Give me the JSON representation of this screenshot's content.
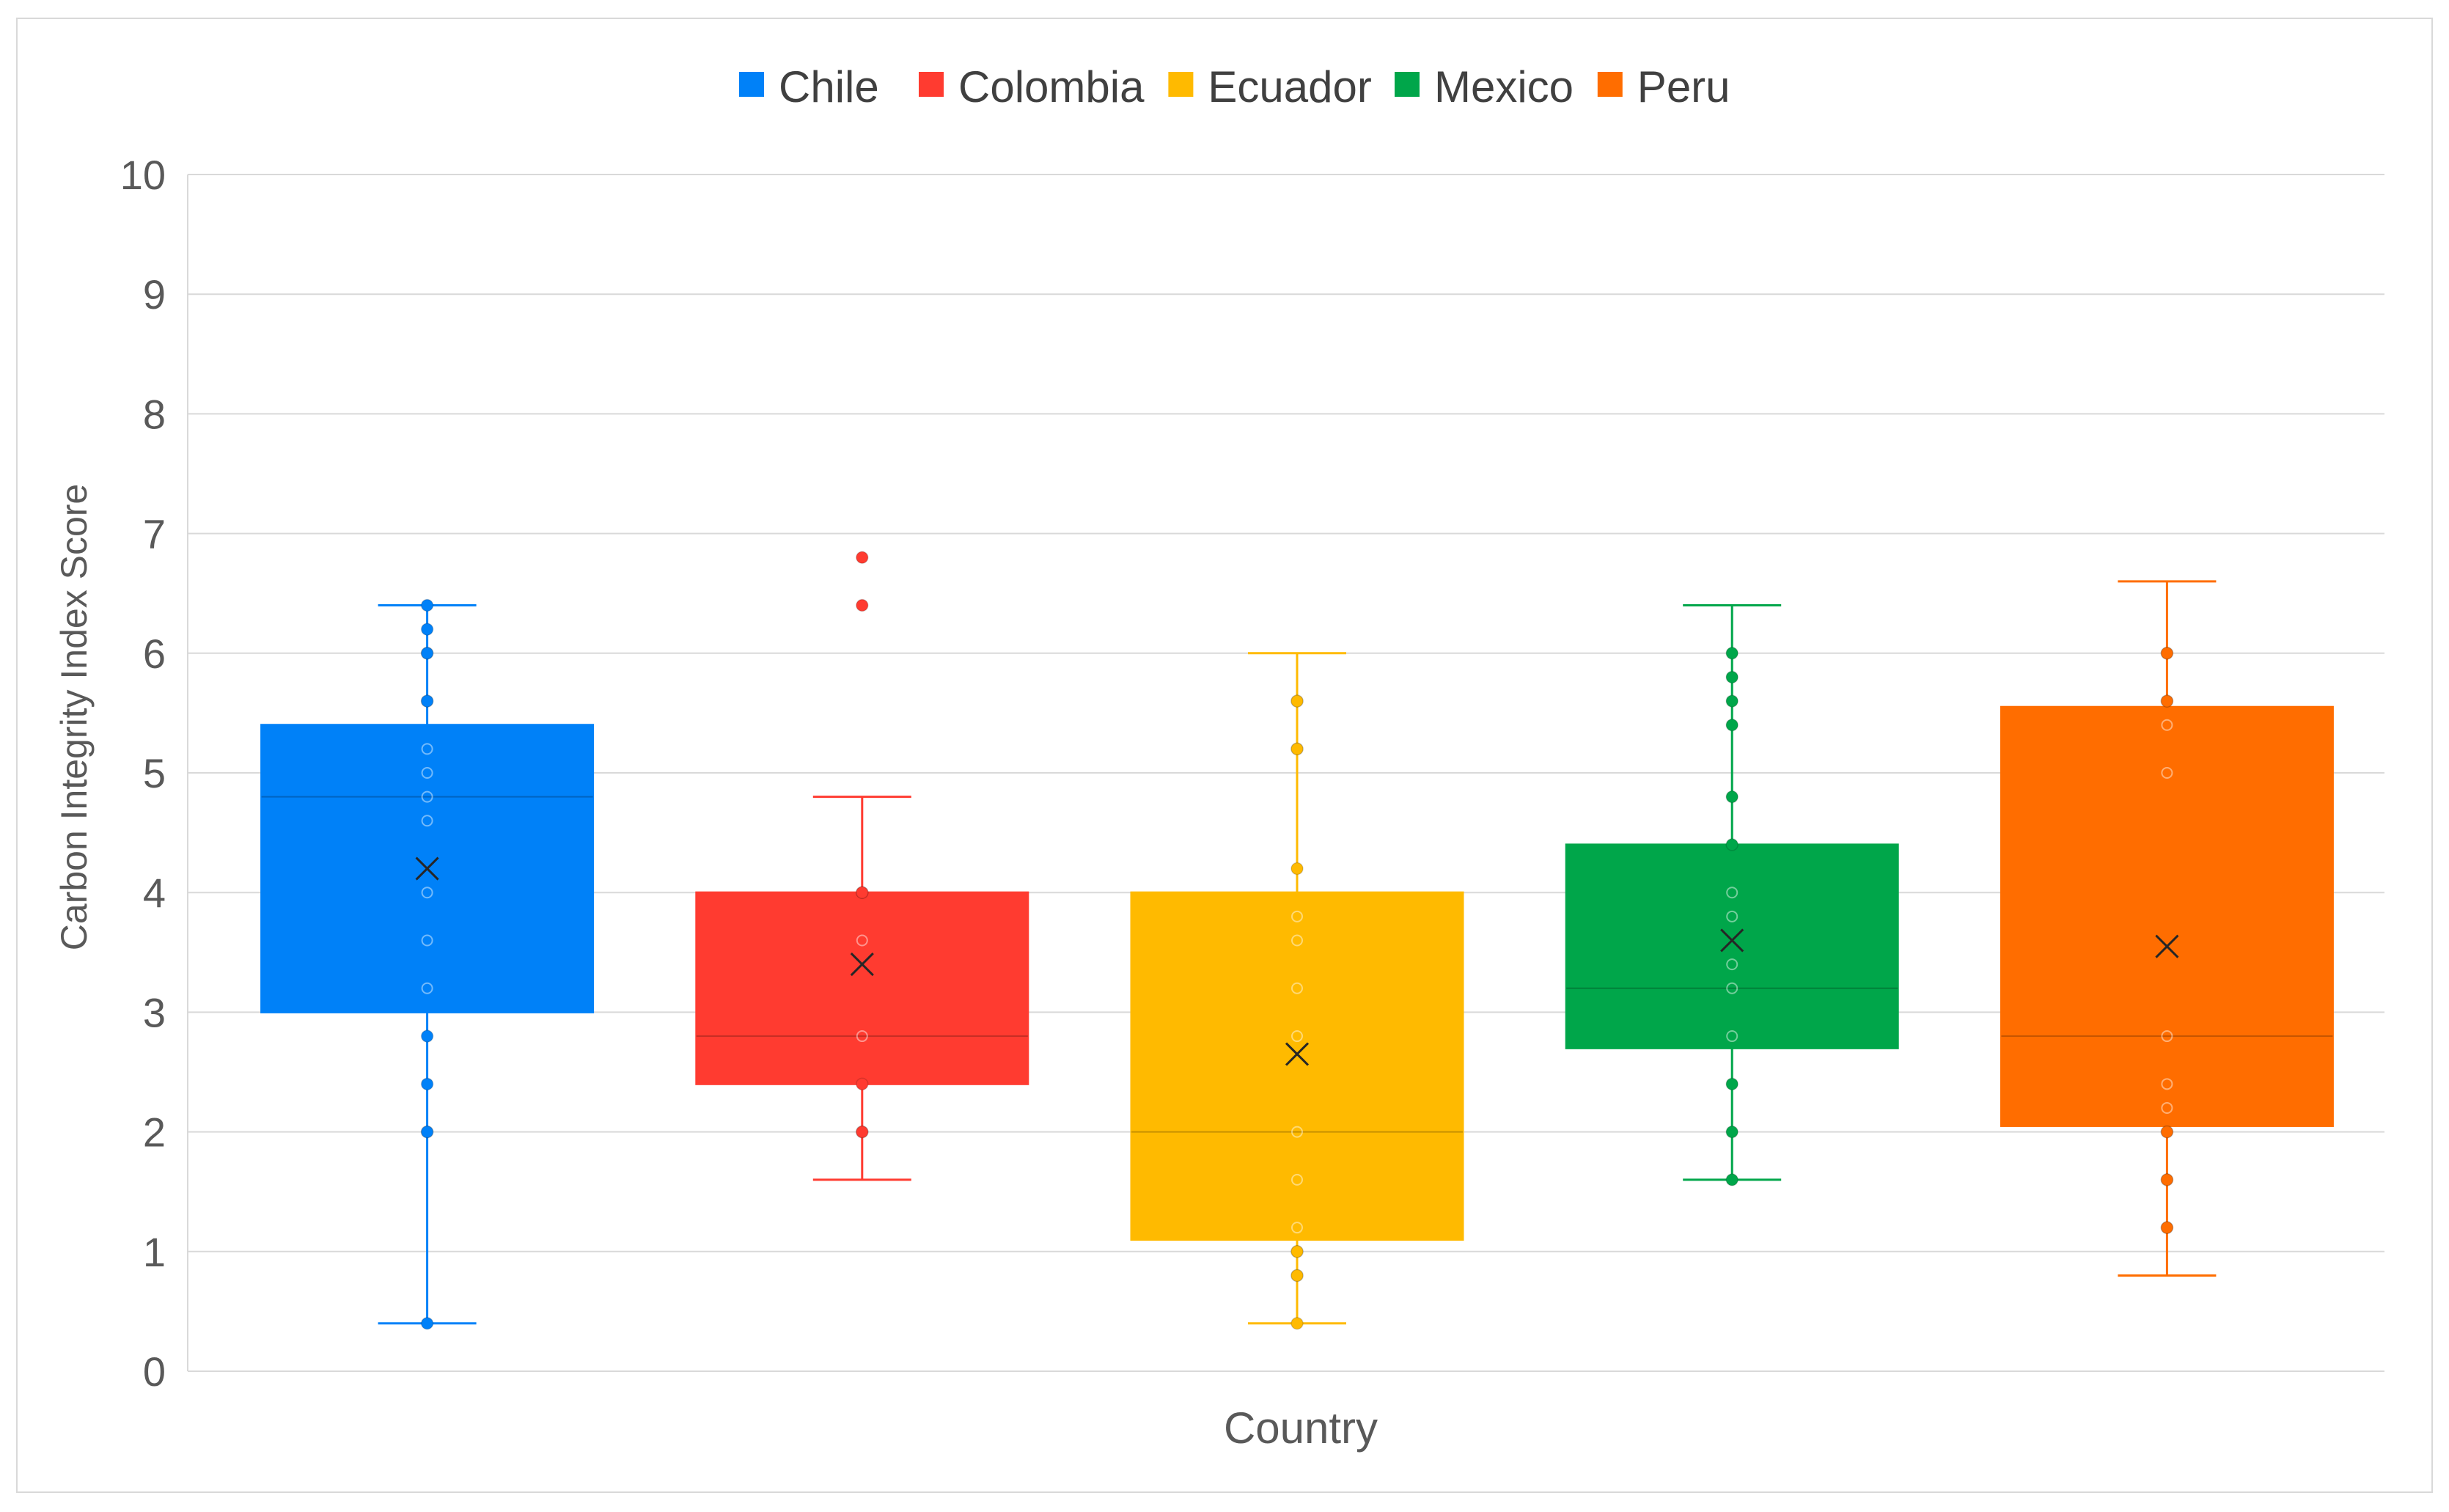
{
  "chart_data": {
    "type": "box",
    "title": "",
    "xlabel": "Country",
    "ylabel": "Carbon Integrity Index Score",
    "ylim": [
      0,
      10
    ],
    "yticks": [
      "0",
      "1",
      "2",
      "3",
      "4",
      "5",
      "6",
      "7",
      "8",
      "9",
      "10"
    ],
    "grid": true,
    "legend_position": "top",
    "series": [
      {
        "name": "Chile",
        "color": "#0081F8",
        "min": 0.4,
        "q1": 3.0,
        "median": 4.8,
        "q3": 5.4,
        "max": 6.4,
        "mean": 4.2,
        "points": [
          0.4,
          2.0,
          2.0,
          2.4,
          2.8,
          3.2,
          3.6,
          4.0,
          4.6,
          4.8,
          5.0,
          5.2,
          5.6,
          5.6,
          6.0,
          6.0,
          6.2,
          6.4
        ],
        "outliers": []
      },
      {
        "name": "Colombia",
        "color": "#FF3B30",
        "min": 1.6,
        "q1": 2.4,
        "median": 2.8,
        "q3": 4.0,
        "max": 4.8,
        "mean": 3.4,
        "points": [
          2.0,
          2.0,
          2.4,
          2.8,
          3.6,
          4.0,
          4.0
        ],
        "outliers": [
          6.4,
          6.8
        ]
      },
      {
        "name": "Ecuador",
        "color": "#FFBA00",
        "min": 0.4,
        "q1": 1.1,
        "median": 2.0,
        "q3": 4.0,
        "max": 6.0,
        "mean": 2.65,
        "points": [
          0.4,
          0.8,
          0.8,
          1.0,
          1.0,
          1.2,
          1.6,
          2.0,
          2.8,
          3.2,
          3.6,
          3.8,
          4.2,
          5.2,
          5.2,
          5.6,
          5.6
        ],
        "outliers": []
      },
      {
        "name": "Mexico",
        "color": "#00A64A",
        "min": 1.6,
        "q1": 2.7,
        "median": 3.2,
        "q3": 4.4,
        "max": 6.4,
        "mean": 3.6,
        "points": [
          1.6,
          2.0,
          2.4,
          2.8,
          3.2,
          3.4,
          3.8,
          4.0,
          4.4,
          4.8,
          5.4,
          5.6,
          5.8,
          6.0
        ],
        "outliers": []
      },
      {
        "name": "Peru",
        "color": "#FF6D00",
        "min": 0.8,
        "q1": 2.05,
        "median": 2.8,
        "q3": 5.55,
        "max": 6.6,
        "mean": 3.55,
        "points": [
          1.2,
          1.2,
          1.6,
          1.6,
          2.0,
          2.0,
          2.2,
          2.4,
          2.8,
          5.0,
          5.4,
          5.6,
          5.6,
          6.0,
          6.0
        ],
        "outliers": []
      }
    ]
  }
}
